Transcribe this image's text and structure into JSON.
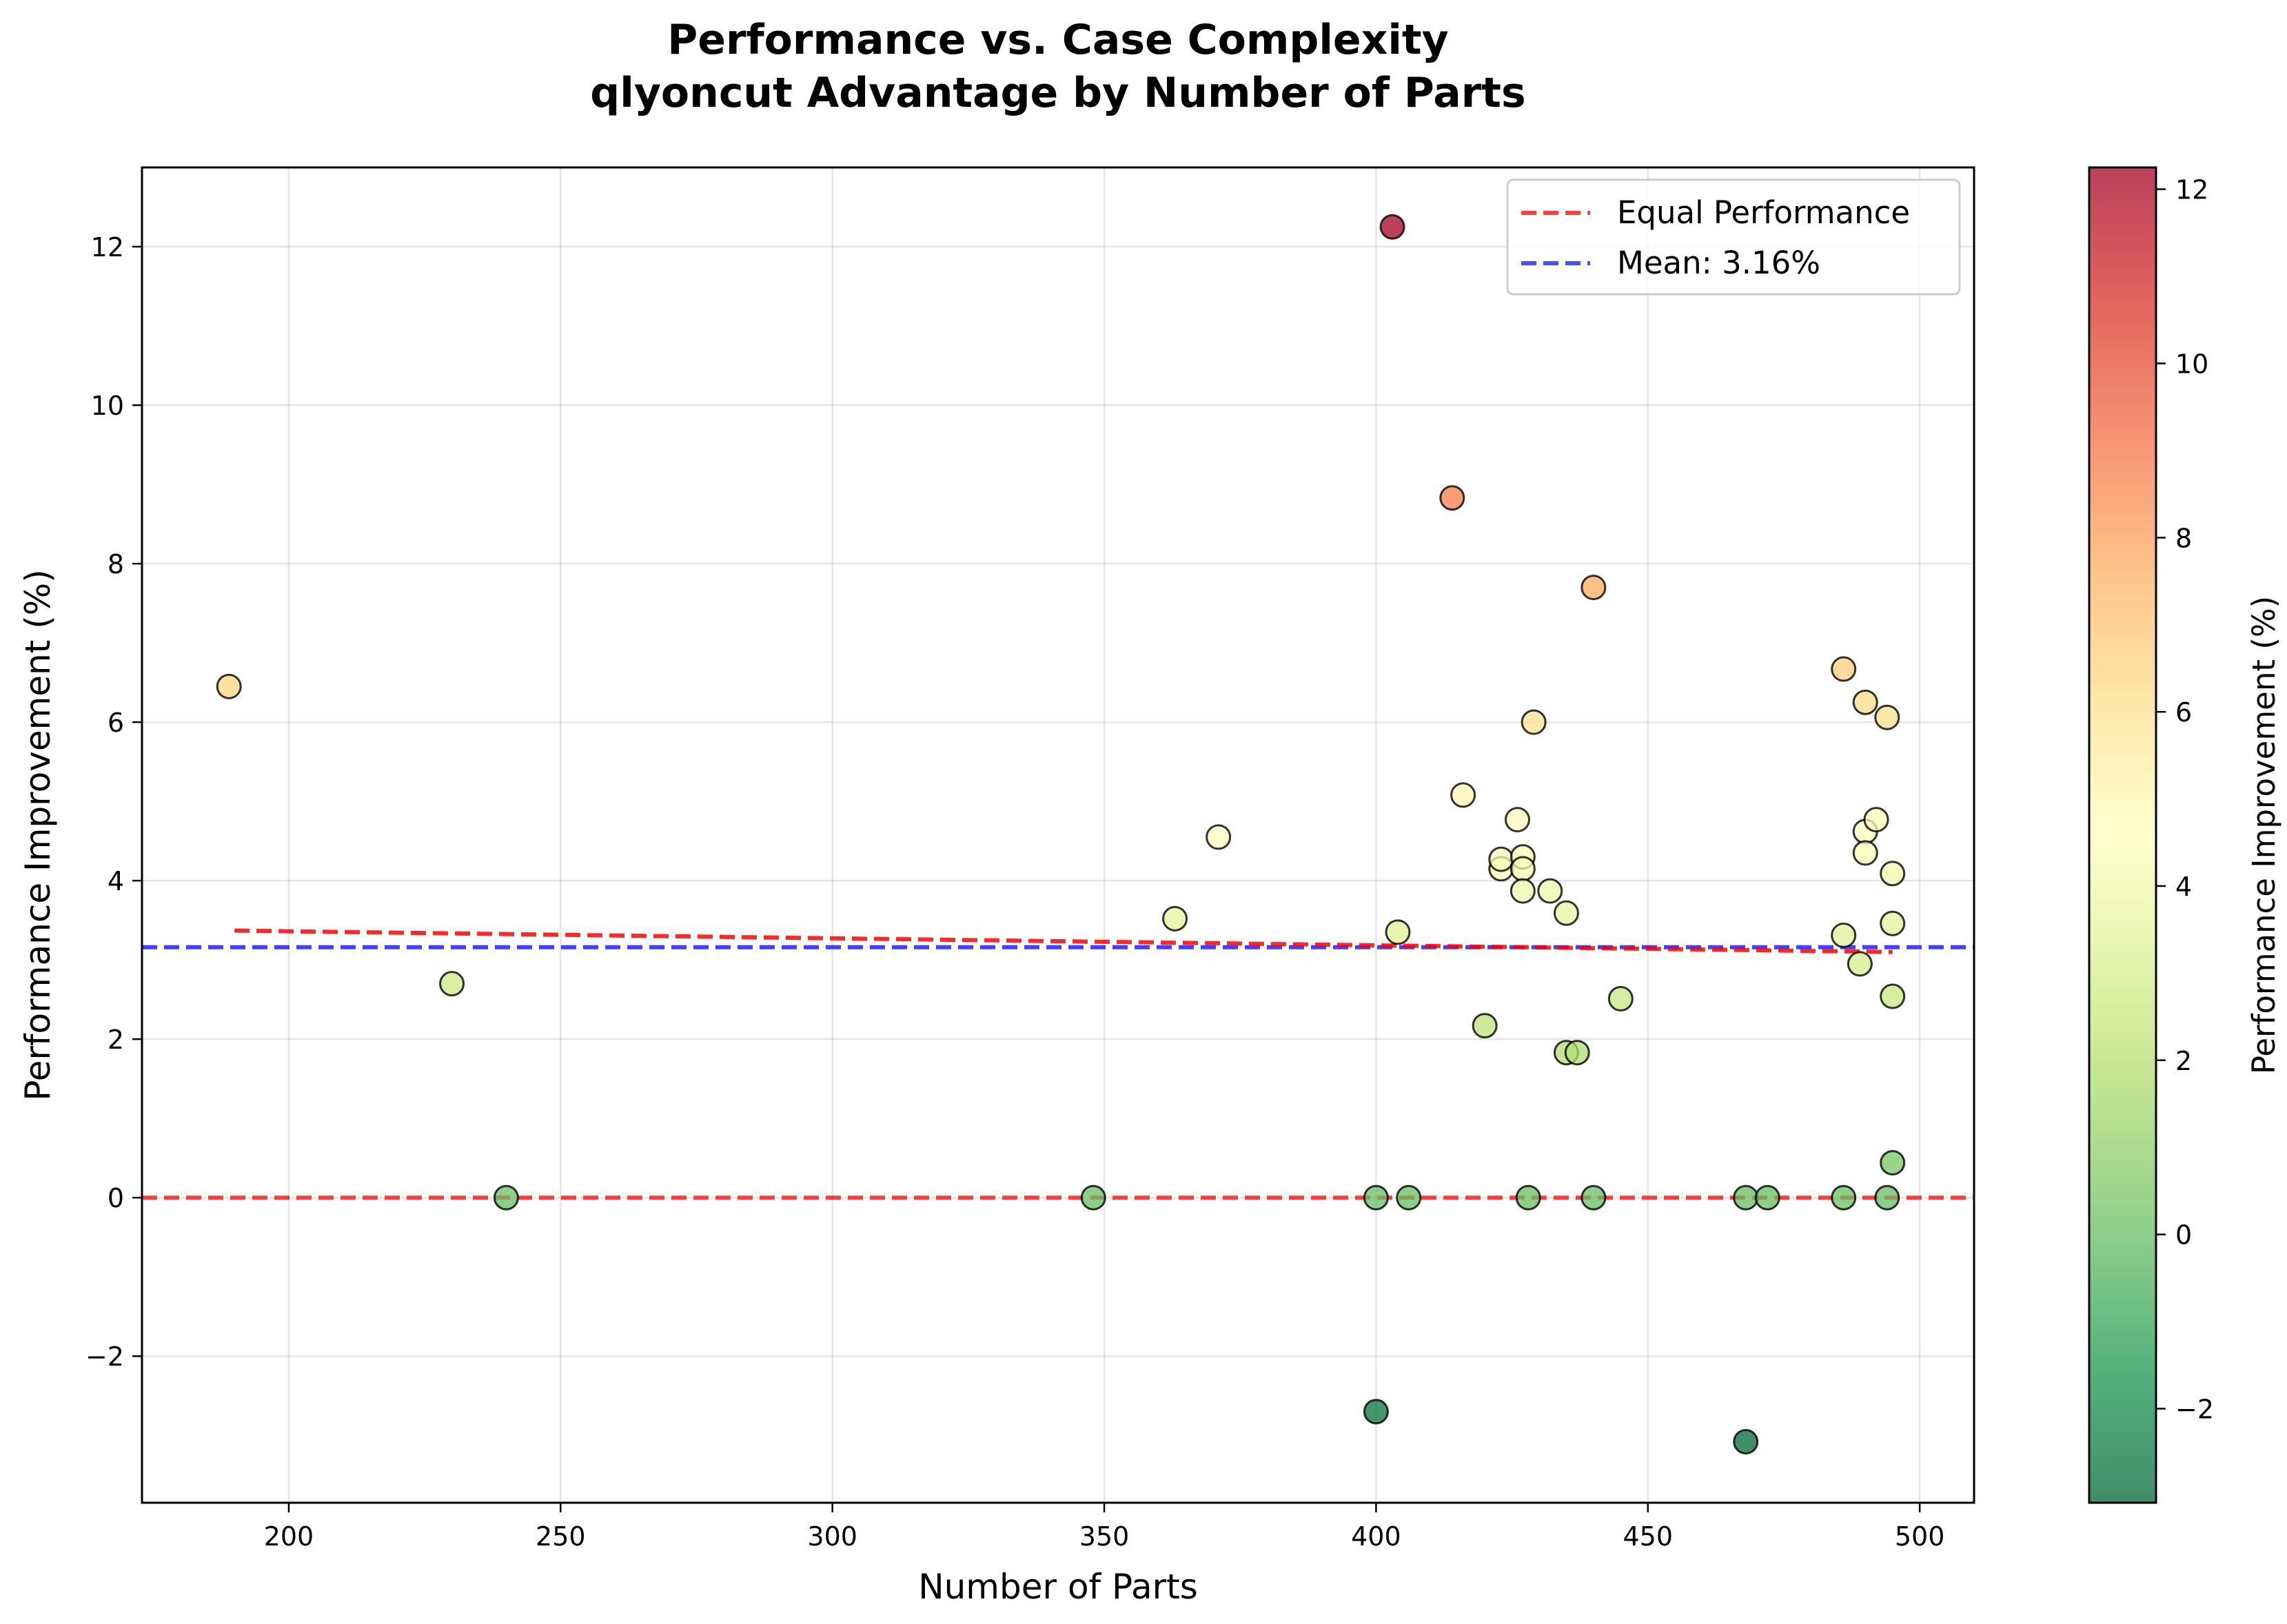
{
  "chart_data": {
    "type": "scatter",
    "title": "Performance vs. Case Complexity",
    "subtitle": "qlyoncut Advantage by Number of Parts",
    "xlabel": "Number of Parts",
    "ylabel": "Performance Improvement (%)",
    "xlim": [
      173,
      510
    ],
    "ylim": [
      -3.85,
      13.0
    ],
    "xticks": [
      200,
      250,
      300,
      350,
      400,
      450,
      500
    ],
    "yticks": [
      -2,
      0,
      2,
      4,
      6,
      8,
      10,
      12
    ],
    "grid": true,
    "legend_position": "top-right",
    "points": [
      {
        "x": 189,
        "y": 6.45
      },
      {
        "x": 230,
        "y": 2.7
      },
      {
        "x": 240,
        "y": 0.0
      },
      {
        "x": 348,
        "y": 0.0
      },
      {
        "x": 363,
        "y": 3.52
      },
      {
        "x": 371,
        "y": 4.55
      },
      {
        "x": 400,
        "y": 0.0
      },
      {
        "x": 400,
        "y": -2.7
      },
      {
        "x": 403,
        "y": 12.25
      },
      {
        "x": 404,
        "y": 3.35
      },
      {
        "x": 406,
        "y": 0.0
      },
      {
        "x": 414,
        "y": 8.83
      },
      {
        "x": 416,
        "y": 5.08
      },
      {
        "x": 420,
        "y": 2.17
      },
      {
        "x": 423,
        "y": 4.15
      },
      {
        "x": 423,
        "y": 4.27
      },
      {
        "x": 426,
        "y": 4.77
      },
      {
        "x": 427,
        "y": 4.3
      },
      {
        "x": 427,
        "y": 4.15
      },
      {
        "x": 427,
        "y": 3.87
      },
      {
        "x": 428,
        "y": 0.0
      },
      {
        "x": 429,
        "y": 6.0
      },
      {
        "x": 432,
        "y": 3.87
      },
      {
        "x": 435,
        "y": 3.59
      },
      {
        "x": 435,
        "y": 1.83
      },
      {
        "x": 437,
        "y": 1.83
      },
      {
        "x": 440,
        "y": 7.7
      },
      {
        "x": 440,
        "y": 0.0
      },
      {
        "x": 445,
        "y": 2.51
      },
      {
        "x": 468,
        "y": 0.0
      },
      {
        "x": 468,
        "y": -3.08
      },
      {
        "x": 472,
        "y": 0.0
      },
      {
        "x": 486,
        "y": 6.67
      },
      {
        "x": 486,
        "y": 3.31
      },
      {
        "x": 486,
        "y": 0.0
      },
      {
        "x": 489,
        "y": 2.95
      },
      {
        "x": 490,
        "y": 6.25
      },
      {
        "x": 490,
        "y": 4.62
      },
      {
        "x": 490,
        "y": 4.35
      },
      {
        "x": 492,
        "y": 4.77
      },
      {
        "x": 494,
        "y": 6.06
      },
      {
        "x": 494,
        "y": 0.0
      },
      {
        "x": 495,
        "y": 4.09
      },
      {
        "x": 495,
        "y": 3.46
      },
      {
        "x": 495,
        "y": 2.54
      },
      {
        "x": 495,
        "y": 0.44
      }
    ],
    "reference_lines": [
      {
        "name": "Equal Performance",
        "y": 0,
        "color": "#ff0000",
        "style": "dashed"
      },
      {
        "name": "Mean: 3.16%",
        "y": 3.16,
        "color": "#0000ff",
        "style": "dashed"
      }
    ],
    "trend_line": {
      "x": [
        190,
        495
      ],
      "y": [
        3.37,
        3.1
      ],
      "color": "#ff0000"
    },
    "colorbar": {
      "label": "Performance Improvement (%)",
      "min": -3.08,
      "max": 12.25,
      "ticks": [
        -2,
        0,
        2,
        4,
        6,
        8,
        10,
        12
      ],
      "colormap": "RdYlGn_r"
    }
  }
}
